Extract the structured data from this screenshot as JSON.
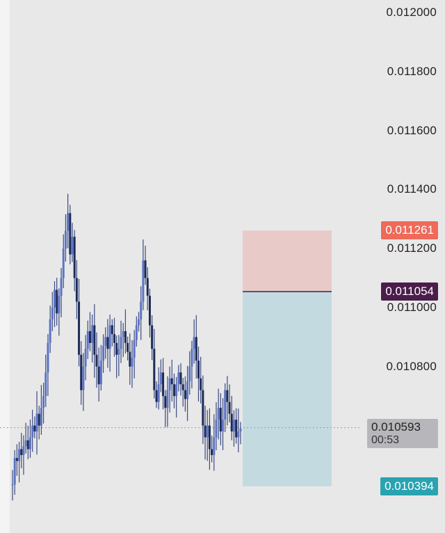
{
  "chart_data": {
    "type": "candlestick",
    "y_ticks": [
      "0.012000",
      "0.011800",
      "0.011600",
      "0.011400",
      "0.011200",
      "0.011000",
      "0.010800"
    ],
    "ylim": [
      0.01034,
      0.01205
    ],
    "series_close": [
      0.0104,
      0.01049,
      0.01048,
      0.01052,
      0.0105,
      0.01053,
      0.01055,
      0.01052,
      0.01056,
      0.0106,
      0.01058,
      0.01064,
      0.0106,
      0.01066,
      0.0107,
      0.01078,
      0.01088,
      0.01096,
      0.011,
      0.01106,
      0.01098,
      0.01104,
      0.0111,
      0.0112,
      0.01126,
      0.01132,
      0.01118,
      0.01124,
      0.0111,
      0.01102,
      0.01084,
      0.01072,
      0.0108,
      0.01086,
      0.01092,
      0.01088,
      0.01094,
      0.01084,
      0.0108,
      0.01074,
      0.01082,
      0.01087,
      0.0109,
      0.01086,
      0.01094,
      0.01091,
      0.01088,
      0.01084,
      0.01086,
      0.0109,
      0.01092,
      0.01088,
      0.01085,
      0.0108,
      0.01083,
      0.01089,
      0.01094,
      0.01096,
      0.01102,
      0.01116,
      0.0111,
      0.01104,
      0.01094,
      0.01086,
      0.01072,
      0.01068,
      0.01074,
      0.01078,
      0.0107,
      0.01066,
      0.01072,
      0.01076,
      0.01074,
      0.0107,
      0.01074,
      0.01078,
      0.01074,
      0.01072,
      0.01069,
      0.01075,
      0.0108,
      0.01086,
      0.0109,
      0.01082,
      0.01076,
      0.01072,
      0.0106,
      0.01056,
      0.0106,
      0.01052,
      0.0105,
      0.01056,
      0.01062,
      0.01066,
      0.01058,
      0.01062,
      0.01072,
      0.01068,
      0.01064,
      0.01058,
      0.01062,
      0.01056,
      0.01058,
      0.01059
    ],
    "current_price": "0.010593",
    "countdown": "00:53"
  },
  "position": {
    "stop_loss": "0.011261",
    "entry": "0.011054",
    "take_profit": "0.010394",
    "stop_value": 0.011261,
    "entry_value": 0.011054,
    "target_value": 0.010394
  },
  "colors": {
    "background": "#e8e8e8",
    "candles": "#3b4a82",
    "risk_zone": "#e8cac8",
    "reward_zone": "#c3dbe0",
    "stop_tag": "#ee6a5a",
    "entry_tag": "#4a1d4a",
    "target_tag": "#2aa3b0",
    "current_tag": "#b7b7bb"
  }
}
